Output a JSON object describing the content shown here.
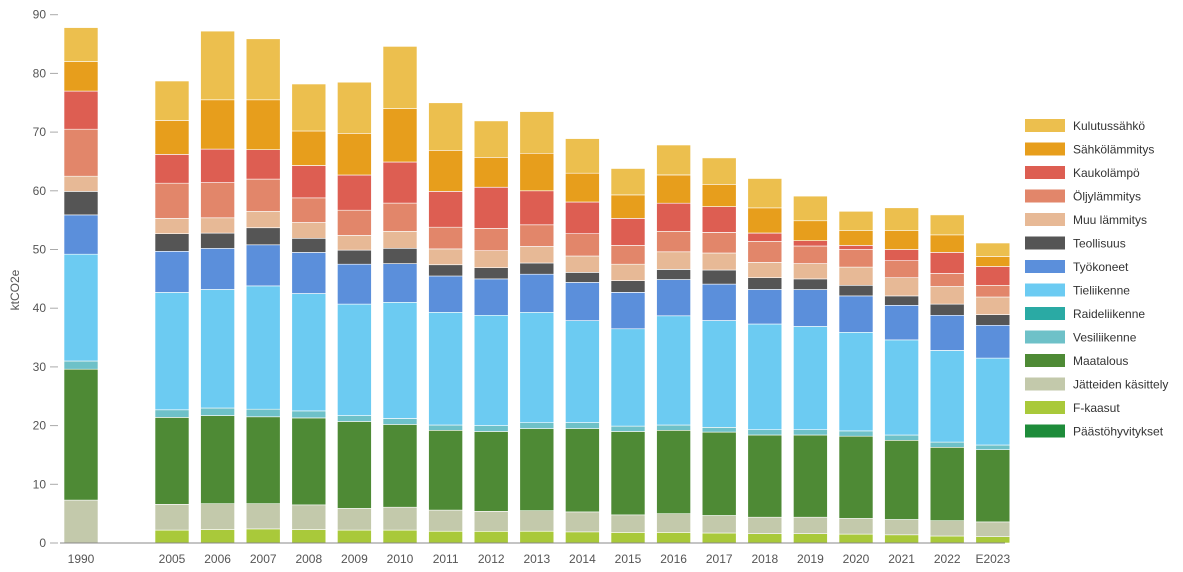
{
  "chart_data": {
    "type": "bar",
    "stacked": true,
    "ylabel": "ktCO2e",
    "ylim": [
      0,
      90
    ],
    "yticks": [
      0,
      10,
      20,
      30,
      40,
      50,
      60,
      70,
      80,
      90
    ],
    "grid": false,
    "legend_position": "right",
    "categories": [
      "1990",
      "2005",
      "2006",
      "2007",
      "2008",
      "2009",
      "2010",
      "2011",
      "2012",
      "2013",
      "2014",
      "2015",
      "2016",
      "2017",
      "2018",
      "2019",
      "2020",
      "2021",
      "2022",
      "E2023"
    ],
    "series": [
      {
        "name": "Päästöhyvitykset",
        "color": "#1e8c3a",
        "values": [
          0,
          0,
          0,
          0,
          0,
          0,
          0,
          0,
          0,
          0,
          0,
          0,
          0,
          0,
          0,
          0,
          0,
          0,
          0,
          0
        ]
      },
      {
        "name": "F-kaasut",
        "color": "#a9c93a",
        "values": [
          0,
          2.2,
          2.3,
          2.4,
          2.3,
          2.2,
          2.2,
          2.0,
          2.0,
          2.0,
          1.9,
          1.8,
          1.8,
          1.7,
          1.6,
          1.6,
          1.5,
          1.4,
          1.2,
          1.1
        ]
      },
      {
        "name": "Jätteiden käsittely",
        "color": "#c3c9ab",
        "values": [
          7.3,
          4.4,
          4.4,
          4.3,
          4.2,
          3.7,
          3.9,
          3.6,
          3.4,
          3.5,
          3.4,
          3.0,
          3.2,
          3.0,
          2.8,
          2.8,
          2.7,
          2.6,
          2.6,
          2.5
        ]
      },
      {
        "name": "Maatalous",
        "color": "#4e8a35",
        "values": [
          22.3,
          14.8,
          15.0,
          14.8,
          14.8,
          14.8,
          14.1,
          13.6,
          13.6,
          14.0,
          14.2,
          14.2,
          14.2,
          14.2,
          14.0,
          14.0,
          14.0,
          13.5,
          12.5,
          12.3
        ]
      },
      {
        "name": "Vesiliikenne",
        "color": "#6ec1c8",
        "values": [
          1.4,
          1.3,
          1.3,
          1.3,
          1.2,
          1.0,
          1.0,
          0.9,
          1.0,
          1.0,
          1.0,
          0.9,
          0.9,
          0.8,
          0.9,
          0.9,
          0.9,
          0.9,
          0.9,
          0.8
        ]
      },
      {
        "name": "Raideliikenne",
        "color": "#2aaaa4",
        "values": [
          0,
          0,
          0,
          0,
          0,
          0,
          0,
          0,
          0,
          0,
          0,
          0,
          0,
          0,
          0,
          0,
          0,
          0,
          0,
          0
        ]
      },
      {
        "name": "Tieliikenne",
        "color": "#6ccbf2",
        "values": [
          18.2,
          20.0,
          20.2,
          21.0,
          20.0,
          19.0,
          19.8,
          19.2,
          18.8,
          18.8,
          17.4,
          16.6,
          18.6,
          18.2,
          18.0,
          17.6,
          16.8,
          16.2,
          15.6,
          14.8
        ]
      },
      {
        "name": "Työkoneet",
        "color": "#5b8fdb",
        "values": [
          6.7,
          7.0,
          7.0,
          7.0,
          7.0,
          6.8,
          6.6,
          6.2,
          6.2,
          6.5,
          6.5,
          6.2,
          6.2,
          6.2,
          5.9,
          6.3,
          6.2,
          5.9,
          6.0,
          5.6
        ]
      },
      {
        "name": "Teollisuus",
        "color": "#555555",
        "values": [
          4.0,
          3.0,
          2.6,
          2.9,
          2.4,
          2.4,
          2.6,
          1.9,
          1.9,
          1.9,
          1.7,
          2.0,
          1.7,
          2.4,
          2.0,
          1.8,
          1.8,
          1.6,
          1.9,
          1.8
        ]
      },
      {
        "name": "Muu lämmitys",
        "color": "#e7b996",
        "values": [
          2.6,
          2.6,
          2.6,
          2.8,
          2.7,
          2.5,
          2.9,
          2.7,
          2.9,
          2.8,
          2.8,
          2.8,
          3.0,
          2.9,
          2.6,
          2.6,
          3.1,
          3.1,
          3.0,
          3.0
        ]
      },
      {
        "name": "Öljylämmitys",
        "color": "#e2866a",
        "values": [
          8.0,
          6.0,
          6.0,
          5.5,
          4.2,
          4.3,
          4.8,
          3.7,
          3.8,
          3.7,
          3.8,
          3.2,
          3.5,
          3.5,
          3.6,
          3.0,
          3.0,
          2.9,
          2.2,
          2.0
        ]
      },
      {
        "name": "Kaukolämpö",
        "color": "#dd5e52",
        "values": [
          6.5,
          4.9,
          5.7,
          5.0,
          5.5,
          6.0,
          7.0,
          6.1,
          7.0,
          5.8,
          5.4,
          4.6,
          4.8,
          4.4,
          1.4,
          0.9,
          0.7,
          1.9,
          3.6,
          3.2
        ]
      },
      {
        "name": "Sähkölämmitys",
        "color": "#e79e1c",
        "values": [
          5.0,
          5.8,
          8.4,
          8.5,
          5.9,
          7.1,
          9.1,
          7.0,
          5.1,
          6.4,
          4.9,
          4.0,
          4.8,
          3.8,
          4.3,
          3.4,
          2.5,
          3.2,
          3.0,
          1.7
        ]
      },
      {
        "name": "Kulutussähkö",
        "color": "#ecbf4e",
        "values": [
          5.8,
          6.7,
          11.7,
          10.4,
          8.0,
          8.7,
          10.6,
          8.1,
          6.2,
          7.1,
          5.9,
          4.5,
          5.1,
          4.5,
          5.0,
          4.2,
          3.3,
          3.9,
          3.4,
          2.3
        ]
      }
    ]
  }
}
